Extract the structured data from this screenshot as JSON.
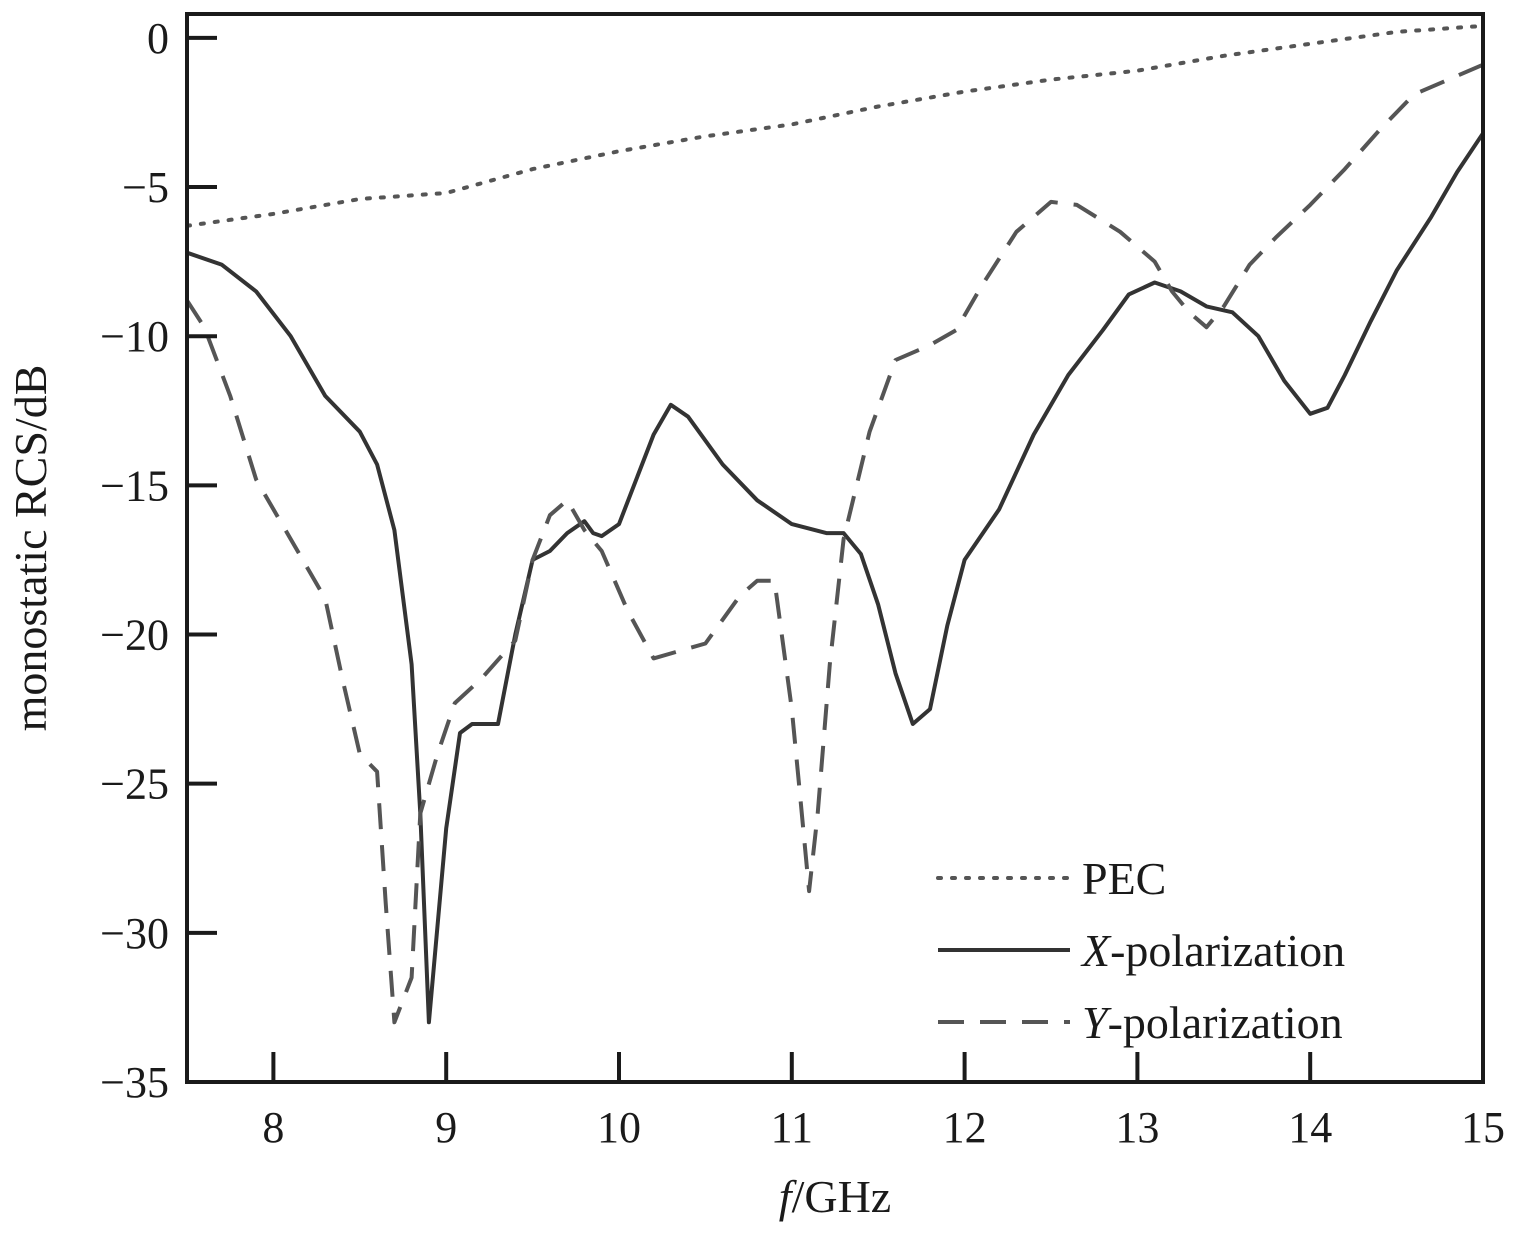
{
  "chart_data": {
    "type": "line",
    "title": "",
    "xlabel": {
      "italic": "f",
      "rest": "/GHz"
    },
    "ylabel": "monostatic RCS/dB",
    "xlim": [
      7.5,
      15
    ],
    "ylim": [
      -35,
      0.8
    ],
    "xticks": [
      8,
      9,
      10,
      11,
      12,
      13,
      14,
      15
    ],
    "xtick_labels": [
      "8",
      "9",
      "10",
      "11",
      "12",
      "13",
      "14",
      "15"
    ],
    "yticks": [
      0,
      -5,
      -10,
      -15,
      -20,
      -25,
      -30,
      -35
    ],
    "ytick_labels": [
      "0",
      "−5",
      "−10",
      "−15",
      "−20",
      "−25",
      "−30",
      "−35"
    ],
    "grid": false,
    "legend_position": "bottom-right",
    "series": [
      {
        "name": "PEC",
        "legend": {
          "italic": "",
          "rest": "PEC"
        },
        "style": "dotted",
        "color": "#555555",
        "points": [
          [
            7.5,
            -6.3
          ],
          [
            8.0,
            -5.9
          ],
          [
            8.5,
            -5.4
          ],
          [
            9.0,
            -5.2
          ],
          [
            9.5,
            -4.4
          ],
          [
            10.0,
            -3.8
          ],
          [
            10.5,
            -3.3
          ],
          [
            11.0,
            -2.9
          ],
          [
            11.5,
            -2.3
          ],
          [
            12.0,
            -1.8
          ],
          [
            12.5,
            -1.4
          ],
          [
            13.0,
            -1.1
          ],
          [
            13.5,
            -0.6
          ],
          [
            14.0,
            -0.2
          ],
          [
            14.5,
            0.2
          ],
          [
            15.0,
            0.4
          ]
        ]
      },
      {
        "name": "X-polarization",
        "legend": {
          "italic": "X",
          "rest": "-polarization"
        },
        "style": "solid",
        "color": "#333333",
        "points": [
          [
            7.5,
            -7.2
          ],
          [
            7.7,
            -7.6
          ],
          [
            7.9,
            -8.5
          ],
          [
            8.1,
            -10.0
          ],
          [
            8.3,
            -12.0
          ],
          [
            8.5,
            -13.2
          ],
          [
            8.6,
            -14.3
          ],
          [
            8.7,
            -16.5
          ],
          [
            8.8,
            -21.0
          ],
          [
            8.85,
            -26.0
          ],
          [
            8.9,
            -33.0
          ],
          [
            9.0,
            -26.5
          ],
          [
            9.08,
            -23.3
          ],
          [
            9.15,
            -23.0
          ],
          [
            9.3,
            -23.0
          ],
          [
            9.4,
            -20.0
          ],
          [
            9.5,
            -17.5
          ],
          [
            9.6,
            -17.2
          ],
          [
            9.7,
            -16.6
          ],
          [
            9.8,
            -16.2
          ],
          [
            9.85,
            -16.6
          ],
          [
            9.9,
            -16.7
          ],
          [
            10.0,
            -16.3
          ],
          [
            10.2,
            -13.3
          ],
          [
            10.3,
            -12.3
          ],
          [
            10.4,
            -12.7
          ],
          [
            10.6,
            -14.3
          ],
          [
            10.8,
            -15.5
          ],
          [
            11.0,
            -16.3
          ],
          [
            11.2,
            -16.6
          ],
          [
            11.3,
            -16.6
          ],
          [
            11.4,
            -17.3
          ],
          [
            11.5,
            -19.0
          ],
          [
            11.6,
            -21.3
          ],
          [
            11.7,
            -23.0
          ],
          [
            11.8,
            -22.5
          ],
          [
            11.9,
            -19.7
          ],
          [
            12.0,
            -17.5
          ],
          [
            12.2,
            -15.8
          ],
          [
            12.4,
            -13.3
          ],
          [
            12.6,
            -11.3
          ],
          [
            12.8,
            -9.8
          ],
          [
            12.95,
            -8.6
          ],
          [
            13.1,
            -8.2
          ],
          [
            13.25,
            -8.5
          ],
          [
            13.4,
            -9.0
          ],
          [
            13.55,
            -9.2
          ],
          [
            13.7,
            -10.0
          ],
          [
            13.85,
            -11.5
          ],
          [
            14.0,
            -12.6
          ],
          [
            14.1,
            -12.4
          ],
          [
            14.2,
            -11.3
          ],
          [
            14.35,
            -9.5
          ],
          [
            14.5,
            -7.8
          ],
          [
            14.7,
            -6.0
          ],
          [
            14.85,
            -4.5
          ],
          [
            15.0,
            -3.2
          ]
        ]
      },
      {
        "name": "Y-polarization",
        "legend": {
          "italic": "Y",
          "rest": "-polarization"
        },
        "style": "dashed",
        "color": "#555555",
        "points": [
          [
            7.5,
            -8.8
          ],
          [
            7.6,
            -9.7
          ],
          [
            7.75,
            -12.0
          ],
          [
            7.9,
            -14.8
          ],
          [
            8.1,
            -16.8
          ],
          [
            8.3,
            -18.8
          ],
          [
            8.4,
            -21.5
          ],
          [
            8.5,
            -24.0
          ],
          [
            8.6,
            -24.6
          ],
          [
            8.65,
            -29.0
          ],
          [
            8.7,
            -33.0
          ],
          [
            8.8,
            -31.5
          ],
          [
            8.85,
            -26.0
          ],
          [
            8.95,
            -24.0
          ],
          [
            9.05,
            -22.3
          ],
          [
            9.2,
            -21.5
          ],
          [
            9.4,
            -20.2
          ],
          [
            9.5,
            -17.5
          ],
          [
            9.6,
            -16.0
          ],
          [
            9.7,
            -15.5
          ],
          [
            9.8,
            -16.5
          ],
          [
            9.9,
            -17.2
          ],
          [
            10.05,
            -19.2
          ],
          [
            10.2,
            -20.8
          ],
          [
            10.5,
            -20.3
          ],
          [
            10.7,
            -18.7
          ],
          [
            10.8,
            -18.2
          ],
          [
            10.9,
            -18.2
          ],
          [
            11.0,
            -22.5
          ],
          [
            11.05,
            -25.5
          ],
          [
            11.1,
            -28.6
          ],
          [
            11.15,
            -26.0
          ],
          [
            11.22,
            -21.0
          ],
          [
            11.3,
            -16.8
          ],
          [
            11.45,
            -13.2
          ],
          [
            11.6,
            -10.8
          ],
          [
            11.8,
            -10.3
          ],
          [
            11.95,
            -9.8
          ],
          [
            12.1,
            -8.3
          ],
          [
            12.3,
            -6.5
          ],
          [
            12.5,
            -5.5
          ],
          [
            12.65,
            -5.6
          ],
          [
            12.9,
            -6.5
          ],
          [
            13.1,
            -7.5
          ],
          [
            13.2,
            -8.5
          ],
          [
            13.3,
            -9.2
          ],
          [
            13.4,
            -9.7
          ],
          [
            13.5,
            -9.0
          ],
          [
            13.65,
            -7.6
          ],
          [
            13.8,
            -6.7
          ],
          [
            14.0,
            -5.6
          ],
          [
            14.2,
            -4.4
          ],
          [
            14.4,
            -3.1
          ],
          [
            14.6,
            -1.9
          ],
          [
            14.8,
            -1.4
          ],
          [
            15.0,
            -0.9
          ]
        ]
      }
    ]
  }
}
